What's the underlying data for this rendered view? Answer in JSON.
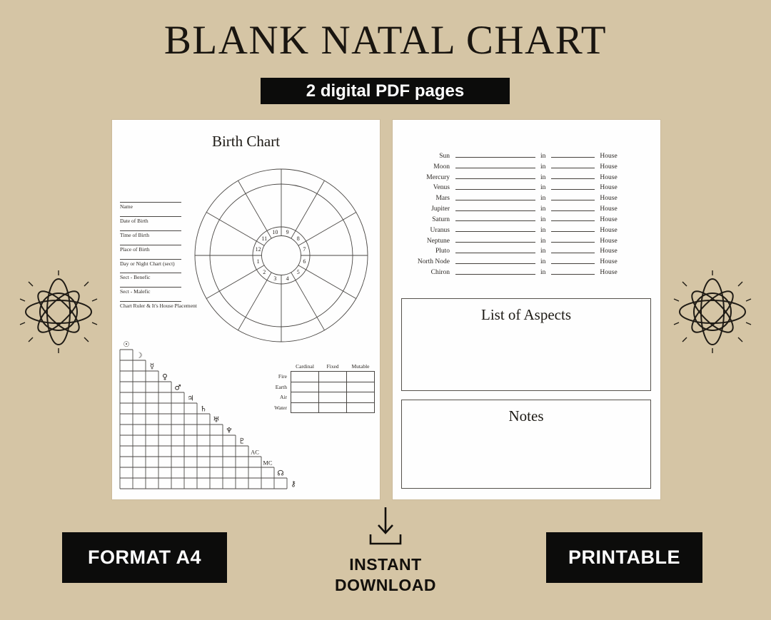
{
  "colors": {
    "background": "#d5c5a5",
    "page": "#fefefe",
    "badge_bg": "#0c0c0b",
    "badge_text": "#ffffff",
    "ink": "#232019",
    "line": "#4a4744"
  },
  "header": {
    "title": "BLANK NATAL CHART",
    "badge": "2 digital PDF pages"
  },
  "icons": {
    "ornament": "atom-star-ornament",
    "download": "down-arrow-into-tray"
  },
  "left_page": {
    "title": "Birth Chart",
    "wheel": {
      "house_numbers": [
        "1",
        "2",
        "3",
        "4",
        "5",
        "6",
        "7",
        "8",
        "9",
        "10",
        "11",
        "12"
      ]
    },
    "fields": [
      "Name",
      "Date of Birth",
      "Time of Birth",
      "Place of Birth",
      "Day or Night Chart (sect)",
      "Sect - Benefic",
      "Sect - Malefic",
      "Chart Ruler & It's House Placement"
    ],
    "aspect_grid": {
      "bodies": [
        {
          "name": "Sun",
          "glyph": "☉",
          "type": "symbol"
        },
        {
          "name": "Moon",
          "glyph": "☽",
          "type": "symbol"
        },
        {
          "name": "Mercury",
          "glyph": "☿",
          "type": "symbol"
        },
        {
          "name": "Venus",
          "glyph": "♀",
          "type": "symbol"
        },
        {
          "name": "Mars",
          "glyph": "♂",
          "type": "symbol"
        },
        {
          "name": "Jupiter",
          "glyph": "♃",
          "type": "symbol"
        },
        {
          "name": "Saturn",
          "glyph": "♄",
          "type": "symbol"
        },
        {
          "name": "Uranus",
          "glyph": "♅",
          "type": "symbol"
        },
        {
          "name": "Neptune",
          "glyph": "♆",
          "type": "symbol"
        },
        {
          "name": "Pluto",
          "glyph": "♇",
          "type": "symbol"
        },
        {
          "name": "Ascendant",
          "glyph": "AC",
          "type": "text"
        },
        {
          "name": "Midheaven",
          "glyph": "MC",
          "type": "text"
        },
        {
          "name": "North Node",
          "glyph": "☊",
          "type": "symbol"
        },
        {
          "name": "Chiron",
          "glyph": "⚷",
          "type": "symbol"
        }
      ]
    },
    "element_table": {
      "columns": [
        "Cardinal",
        "Fixed",
        "Mutable"
      ],
      "rows": [
        "Fire",
        "Earth",
        "Air",
        "Water"
      ]
    }
  },
  "right_page": {
    "placements": {
      "bodies": [
        "Sun",
        "Moon",
        "Mercury",
        "Venus",
        "Mars",
        "Jupiter",
        "Saturn",
        "Uranus",
        "Neptune",
        "Pluto",
        "North Node",
        "Chiron"
      ],
      "connector": "in",
      "suffix": "House"
    },
    "aspects_title": "List of Aspects",
    "notes_title": "Notes"
  },
  "footer": {
    "format_badge": "FORMAT A4",
    "download_label": "INSTANT DOWNLOAD",
    "printable_badge": "PRINTABLE"
  }
}
